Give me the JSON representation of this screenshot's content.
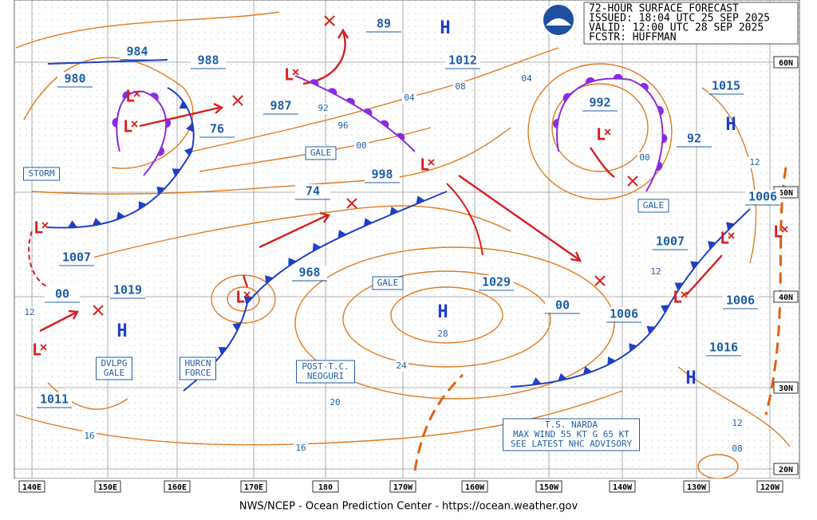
{
  "header": {
    "lines": [
      "72-HOUR SURFACE FORECAST",
      "ISSUED: 18:04 UTC 25 SEP 2025",
      "VALID:  12:00 UTC 28 SEP 2025",
      "FCSTR:  HUFFMAN"
    ]
  },
  "footer": "NWS/NCEP - Ocean Prediction Center - https://ocean.weather.gov",
  "longitude_labels": [
    "140E",
    "150E",
    "160E",
    "170E",
    "180",
    "170W",
    "160W",
    "150W",
    "140W",
    "130W",
    "120W"
  ],
  "latitude_labels": [
    "60N",
    "50N",
    "40N",
    "30N",
    "20N"
  ],
  "pressure_labels": [
    "984",
    "980",
    "988",
    "987",
    "76",
    "1012",
    "89",
    "992",
    "1015",
    "92",
    "1006",
    "1007",
    "998",
    "74",
    "968",
    "1029",
    "00",
    "1006",
    "1007",
    "1019",
    "00",
    "1011",
    "1006",
    "1016"
  ],
  "isobar_labels": [
    "04",
    "08",
    "92",
    "96",
    "00",
    "04",
    "00",
    "12",
    "12",
    "28",
    "24",
    "20",
    "16",
    "16",
    "12",
    "08",
    "12"
  ],
  "text_boxes": [
    [
      "STORM"
    ],
    [
      "GALE"
    ],
    [
      "GALE"
    ],
    [
      "GALE"
    ],
    [
      "DVLPG",
      "GALE"
    ],
    [
      "HURCN",
      "FORCE"
    ],
    [
      "POST-T.C.",
      "NEOGURI"
    ],
    [
      "T.S. NARDA",
      "MAX WIND 55 KT G 65 KT",
      "SEE LATEST NHC ADVISORY"
    ]
  ],
  "high_centers": [
    "H",
    "H",
    "H",
    "H",
    "H"
  ],
  "low_centers": [
    "L",
    "L",
    "L",
    "L",
    "L",
    "L",
    "L",
    "L",
    "L",
    "L",
    "L"
  ]
}
